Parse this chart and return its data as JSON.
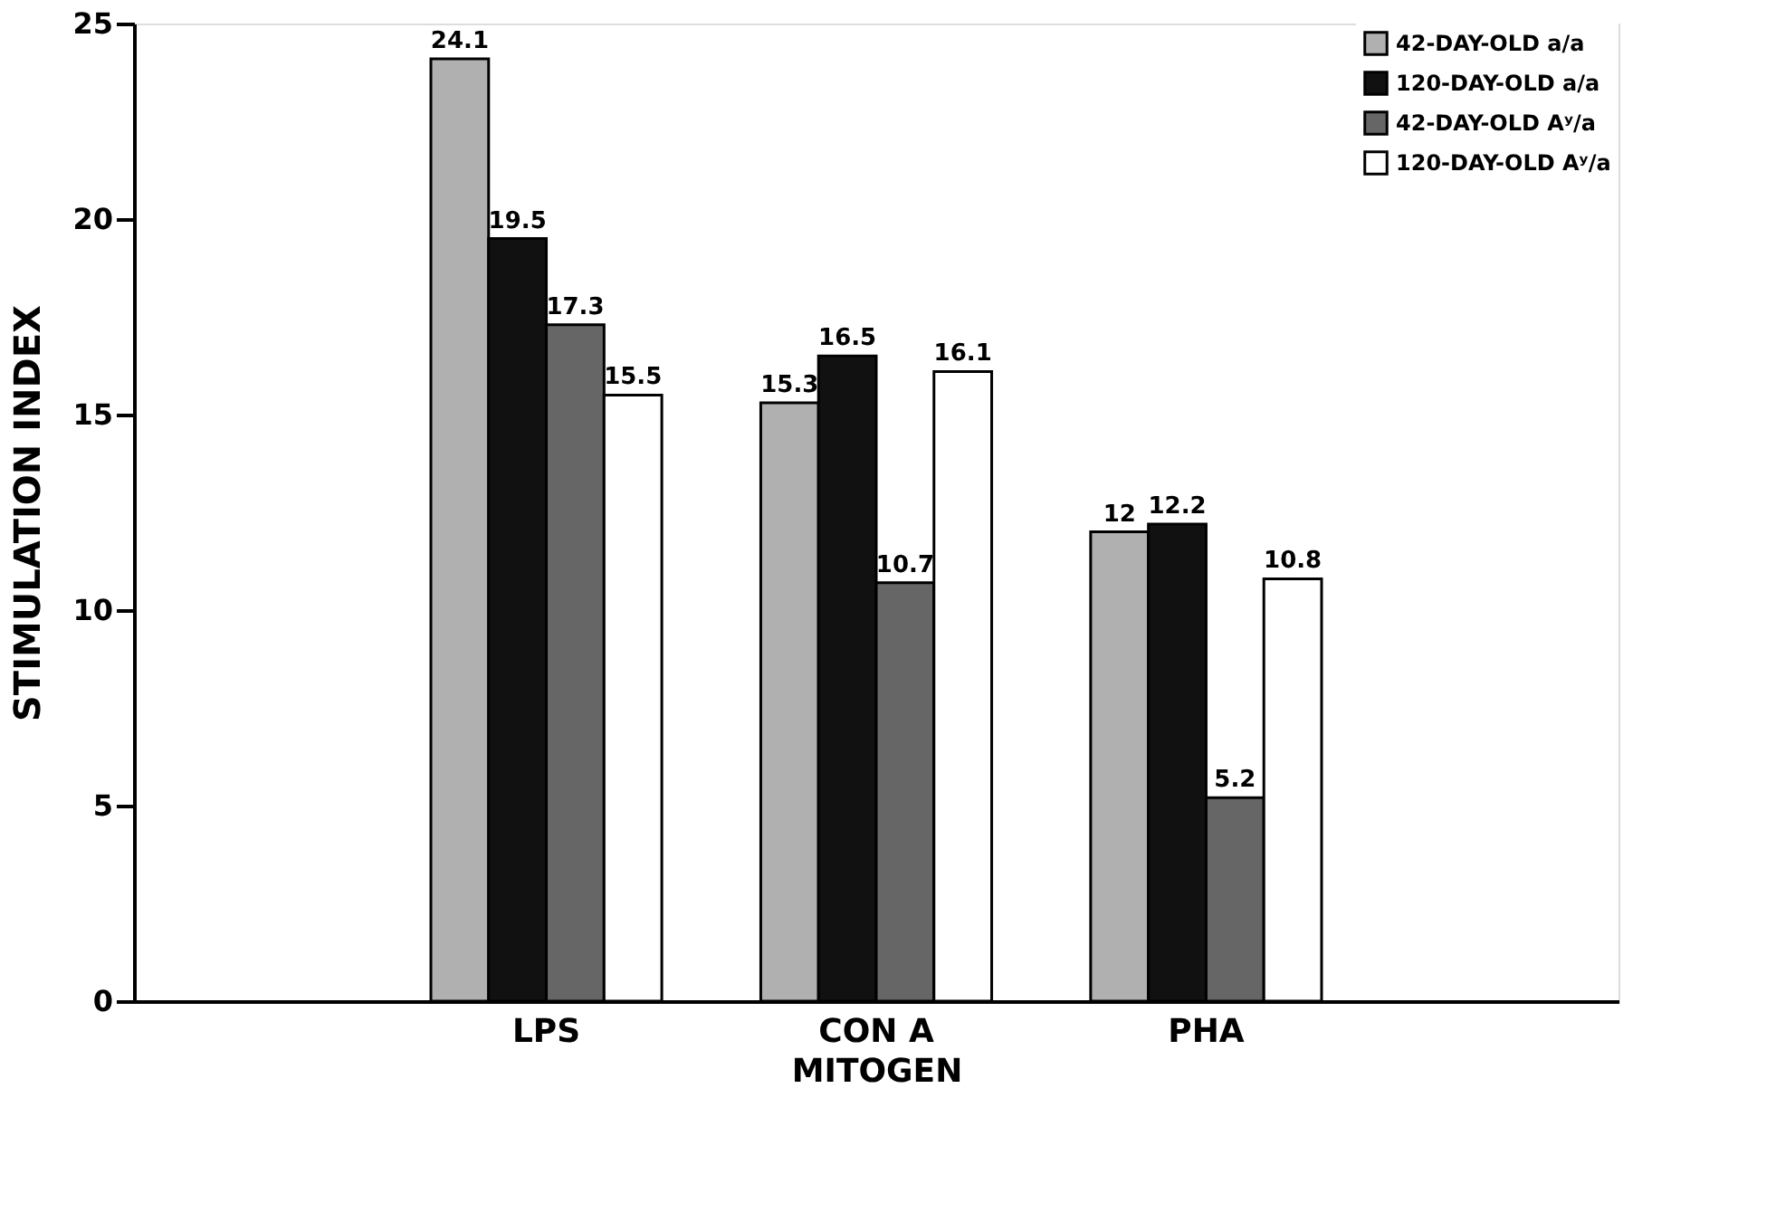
{
  "chart_data": {
    "type": "bar",
    "xlabel": "MITOGEN",
    "ylabel": "STIMULATION INDEX",
    "categories": [
      "LPS",
      "CON A",
      "PHA"
    ],
    "series": [
      {
        "name": "42-DAY-OLD a/a",
        "color": "#b0b0b0",
        "values": [
          24.1,
          15.3,
          12
        ]
      },
      {
        "name": "120-DAY-OLD a/a",
        "color": "#111111",
        "values": [
          19.5,
          16.5,
          12.2
        ]
      },
      {
        "name": "42-DAY-OLD Aʸ/a",
        "color": "#666666",
        "values": [
          17.3,
          10.7,
          5.2
        ]
      },
      {
        "name": "120-DAY-OLD Aʸ/a",
        "color": "#ffffff",
        "values": [
          15.5,
          16.1,
          10.8
        ]
      }
    ],
    "ylim": [
      0,
      25
    ],
    "yticks": [
      0,
      5,
      10,
      15,
      20,
      25
    ],
    "grid": false,
    "legend": "top right",
    "data_labels": true
  }
}
